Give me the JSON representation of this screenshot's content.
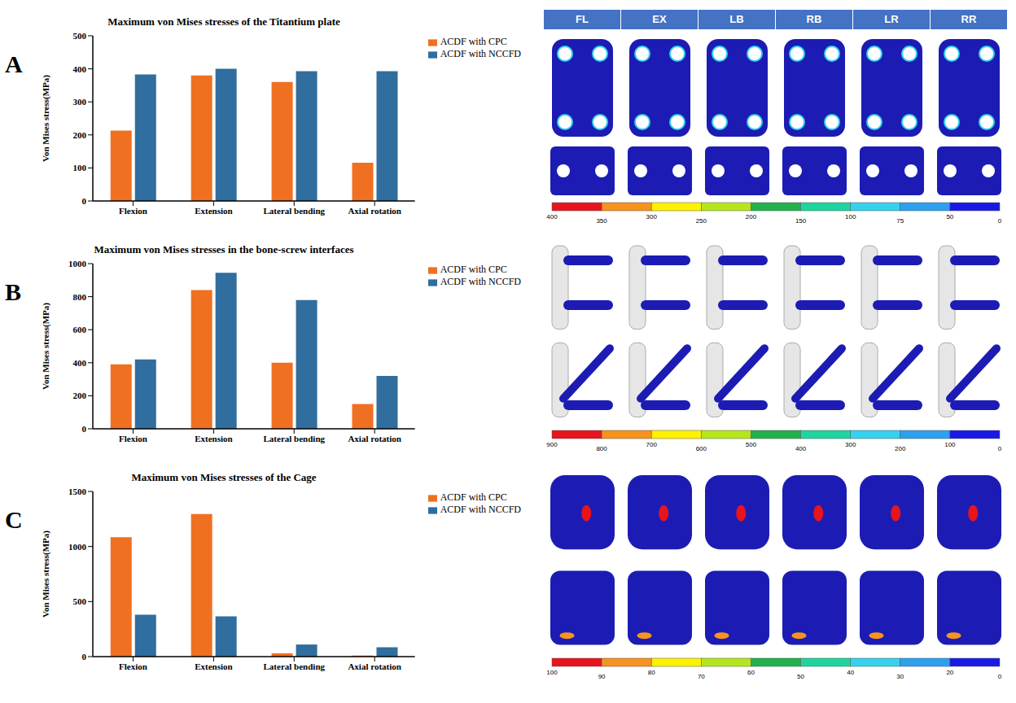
{
  "panels": [
    "A",
    "B",
    "C"
  ],
  "chart_data": [
    {
      "type": "bar",
      "title": "Maximum von Mises stresses of the Titantium plate",
      "y_label": "Von Mises stress(MPa)",
      "categories": [
        "Flexion",
        "Extension",
        "Lateral bending",
        "Axial rotation"
      ],
      "series": [
        {
          "name": "ACDF with CPC",
          "color": "#f07021",
          "values": [
            213,
            380,
            360,
            116
          ]
        },
        {
          "name": "ACDF with NCCFD",
          "color": "#2f6e9e",
          "values": [
            383,
            400,
            393,
            393
          ]
        }
      ],
      "ylim": [
        0,
        500
      ],
      "yticks": [
        0,
        100,
        200,
        300,
        400,
        500
      ],
      "grid": false,
      "legend": "right"
    },
    {
      "type": "bar",
      "title": "Maximum von Mises stresses in the bone-screw interfaces",
      "y_label": "Von Mises stress(MPa)",
      "categories": [
        "Flexion",
        "Extension",
        "Lateral bending",
        "Axial rotation"
      ],
      "series": [
        {
          "name": "ACDF with CPC",
          "color": "#f07021",
          "values": [
            390,
            840,
            400,
            150
          ]
        },
        {
          "name": "ACDF with NCCFD",
          "color": "#2f6e9e",
          "values": [
            420,
            945,
            780,
            320
          ]
        }
      ],
      "ylim": [
        0,
        1000
      ],
      "yticks": [
        0,
        200,
        400,
        600,
        800,
        1000
      ],
      "grid": false,
      "legend": "right"
    },
    {
      "type": "bar",
      "title": "Maximum von Mises stresses of the Cage",
      "y_label": "Von Mises stress(MPa)",
      "categories": [
        "Flexion",
        "Extension",
        "Lateral bending",
        "Axial rotation"
      ],
      "series": [
        {
          "name": "ACDF with CPC",
          "color": "#f07021",
          "values": [
            1085,
            1295,
            30,
            10
          ]
        },
        {
          "name": "ACDF with NCCFD",
          "color": "#2f6e9e",
          "values": [
            380,
            365,
            110,
            85
          ]
        }
      ],
      "ylim": [
        0,
        1500
      ],
      "yticks": [
        0,
        500,
        1000,
        1500
      ],
      "grid": false,
      "legend": "right"
    }
  ],
  "contour_figure": {
    "columns": [
      "FL",
      "EX",
      "LB",
      "RB",
      "LR",
      "RR"
    ],
    "color_bars": [
      {
        "colors": [
          "#e8141c",
          "#f7931e",
          "#fff200",
          "#b5e61d",
          "#22b14c",
          "#1ed5a0",
          "#35d2f0",
          "#2ea0f0",
          "#1a1ae6"
        ],
        "ticks": [
          400,
          350,
          300,
          250,
          200,
          150,
          100,
          75,
          50,
          0
        ]
      },
      {
        "colors": [
          "#e8141c",
          "#f7931e",
          "#fff200",
          "#b5e61d",
          "#22b14c",
          "#1ed5a0",
          "#35d2f0",
          "#2ea0f0",
          "#1a1ae6"
        ],
        "ticks": [
          900,
          800,
          700,
          600,
          500,
          400,
          300,
          200,
          100,
          0
        ]
      },
      {
        "colors": [
          "#e8141c",
          "#f7931e",
          "#fff200",
          "#b5e61d",
          "#22b14c",
          "#1ed5a0",
          "#35d2f0",
          "#2ea0f0",
          "#1a1ae6"
        ],
        "ticks": [
          100,
          90,
          80,
          70,
          60,
          50,
          40,
          30,
          20,
          0
        ]
      }
    ]
  }
}
